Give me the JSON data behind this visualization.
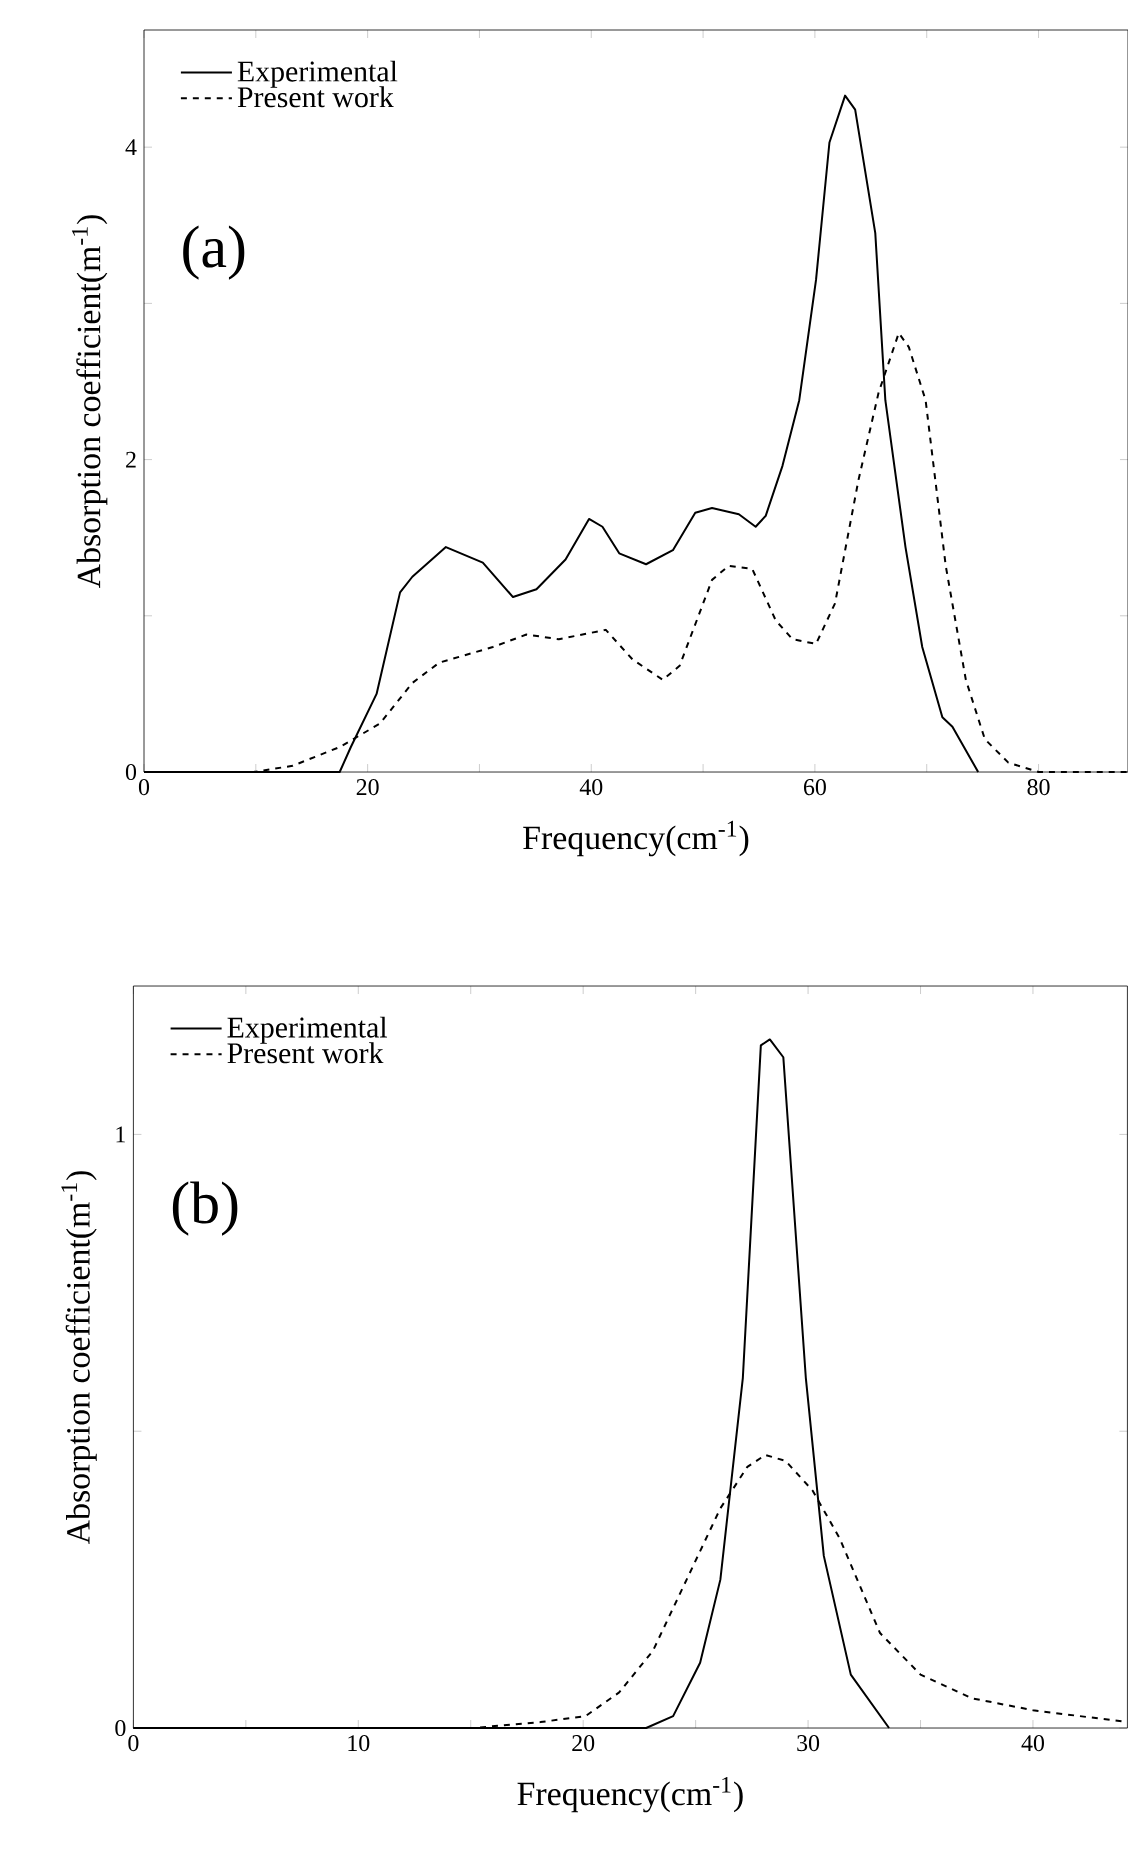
{
  "chart_data": [
    {
      "type": "line",
      "xlabel": "Frequency(cm$^{-1}$)",
      "ylabel": "Absorption coefficient(m$^{-1}$)",
      "annotations": [
        "(a)"
      ],
      "legend": "top left",
      "marker": "none",
      "grid": false,
      "xlim": [
        0,
        88
      ],
      "ylim": [
        0,
        4.75
      ],
      "xticks": [
        0,
        {
          "value": 10,
          "label": null
        },
        20,
        {
          "value": 30,
          "label": null
        },
        40,
        {
          "value": 50,
          "label": null
        },
        60,
        {
          "value": 70,
          "label": null
        },
        80
      ],
      "yticks": [
        0,
        {
          "value": 1,
          "label": null
        },
        2,
        {
          "value": 3,
          "label": null
        },
        4
      ],
      "series": [
        {
          "name": "Experimental",
          "color": "#000000",
          "line_style": "solid",
          "x": [
            0,
            17.5,
            18.5,
            20.8,
            22.9,
            24.0,
            27.0,
            30.3,
            33.0,
            35.1,
            37.7,
            39.8,
            41.0,
            42.5,
            44.9,
            47.3,
            49.3,
            50.8,
            53.2,
            54.7,
            55.6,
            57.1,
            58.6,
            60.1,
            61.3,
            62.7,
            63.6,
            65.4,
            66.3,
            68.1,
            69.6,
            71.4,
            72.3,
            74.6
          ],
          "values": [
            0,
            0,
            0.16,
            0.5,
            1.15,
            1.25,
            1.44,
            1.34,
            1.12,
            1.17,
            1.36,
            1.62,
            1.57,
            1.4,
            1.33,
            1.42,
            1.66,
            1.69,
            1.65,
            1.57,
            1.64,
            1.96,
            2.38,
            3.15,
            4.03,
            4.33,
            4.24,
            3.45,
            2.38,
            1.44,
            0.8,
            0.35,
            0.29,
            0
          ]
        },
        {
          "name": "Present work",
          "color": "#000000",
          "line_style": "dashed",
          "x": [
            0,
            9.8,
            13.3,
            17.5,
            21.1,
            24.0,
            26.4,
            31.2,
            34.2,
            37.1,
            41.3,
            43.7,
            46.4,
            47.9,
            50.8,
            52.3,
            54.4,
            56.5,
            58.0,
            60.1,
            61.8,
            63.9,
            65.7,
            67.5,
            68.4,
            69.9,
            71.7,
            73.5,
            75.2,
            77.3,
            80,
            88
          ],
          "values": [
            0,
            0,
            0.04,
            0.16,
            0.31,
            0.57,
            0.7,
            0.8,
            0.88,
            0.85,
            0.91,
            0.72,
            0.59,
            0.68,
            1.23,
            1.32,
            1.3,
            0.97,
            0.85,
            0.82,
            1.08,
            1.87,
            2.43,
            2.81,
            2.72,
            2.38,
            1.32,
            0.59,
            0.21,
            0.06,
            0,
            0
          ]
        }
      ]
    },
    {
      "type": "line",
      "xlabel": "Frequency(cm$^{-1}$)",
      "ylabel": "Absorption coefficient(m$^{-1}$)",
      "annotations": [
        "(b)"
      ],
      "legend": "top left",
      "marker": "none",
      "grid": false,
      "xlim": [
        0,
        44.2
      ],
      "ylim": [
        0,
        1.25
      ],
      "xticks": [
        0,
        {
          "value": 5,
          "label": null
        },
        10,
        {
          "value": 15,
          "label": null
        },
        20,
        {
          "value": 25,
          "label": null
        },
        30,
        {
          "value": 35,
          "label": null
        },
        40
      ],
      "yticks": [
        0,
        {
          "value": 0.5,
          "label": null
        },
        1
      ],
      "series": [
        {
          "name": "Experimental",
          "color": "#000000",
          "line_style": "solid",
          "x": [
            0,
            22.8,
            24.0,
            25.2,
            26.1,
            27.1,
            27.9,
            28.3,
            28.9,
            29.9,
            30.7,
            31.9,
            33.6
          ],
          "values": [
            0,
            0,
            0.02,
            0.11,
            0.25,
            0.59,
            1.15,
            1.16,
            1.13,
            0.59,
            0.29,
            0.09,
            0
          ]
        },
        {
          "name": "Present work",
          "color": "#000000",
          "line_style": "dashed",
          "x": [
            0,
            15.1,
            18.1,
            20.1,
            21.6,
            23.1,
            24.6,
            26.1,
            27.3,
            28.1,
            29.0,
            30.2,
            31.4,
            33.2,
            35.0,
            37.3,
            40.0,
            44.2
          ],
          "values": [
            0,
            0,
            0.01,
            0.02,
            0.06,
            0.13,
            0.25,
            0.37,
            0.44,
            0.46,
            0.45,
            0.4,
            0.32,
            0.16,
            0.09,
            0.05,
            0.03,
            0.01
          ]
        }
      ]
    }
  ]
}
